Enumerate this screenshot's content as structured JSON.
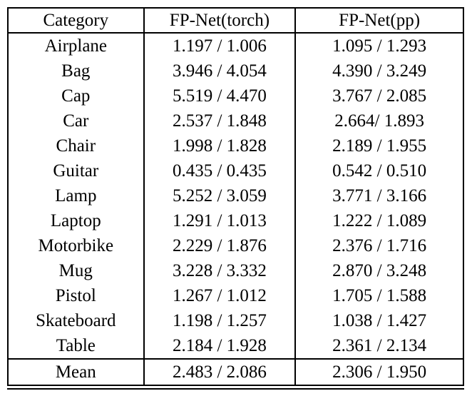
{
  "table": {
    "headers": [
      "Category",
      "FP-Net(torch)",
      "FP-Net(pp)"
    ],
    "rows": [
      [
        "Airplane",
        "1.197 / 1.006",
        "1.095 / 1.293"
      ],
      [
        "Bag",
        "3.946 / 4.054",
        "4.390 / 3.249"
      ],
      [
        "Cap",
        "5.519 / 4.470",
        "3.767 / 2.085"
      ],
      [
        "Car",
        "2.537 / 1.848",
        "2.664/ 1.893"
      ],
      [
        "Chair",
        "1.998 / 1.828",
        "2.189 / 1.955"
      ],
      [
        "Guitar",
        "0.435 / 0.435",
        "0.542 / 0.510"
      ],
      [
        "Lamp",
        "5.252 / 3.059",
        "3.771 / 3.166"
      ],
      [
        "Laptop",
        "1.291 / 1.013",
        "1.222 / 1.089"
      ],
      [
        "Motorbike",
        "2.229 / 1.876",
        "2.376 / 1.716"
      ],
      [
        "Mug",
        "3.228 / 3.332",
        "2.870 / 3.248"
      ],
      [
        "Pistol",
        "1.267 / 1.012",
        "1.705 / 1.588"
      ],
      [
        "Skateboard",
        "1.198 / 1.257",
        "1.038 / 1.427"
      ],
      [
        "Table",
        "2.184 / 1.928",
        "2.361 / 2.134"
      ]
    ],
    "footer": [
      "Mean",
      "2.483 / 2.086",
      "2.306 / 1.950"
    ]
  },
  "colors": {
    "border": "#000000",
    "text": "#000000",
    "background": "#ffffff"
  }
}
